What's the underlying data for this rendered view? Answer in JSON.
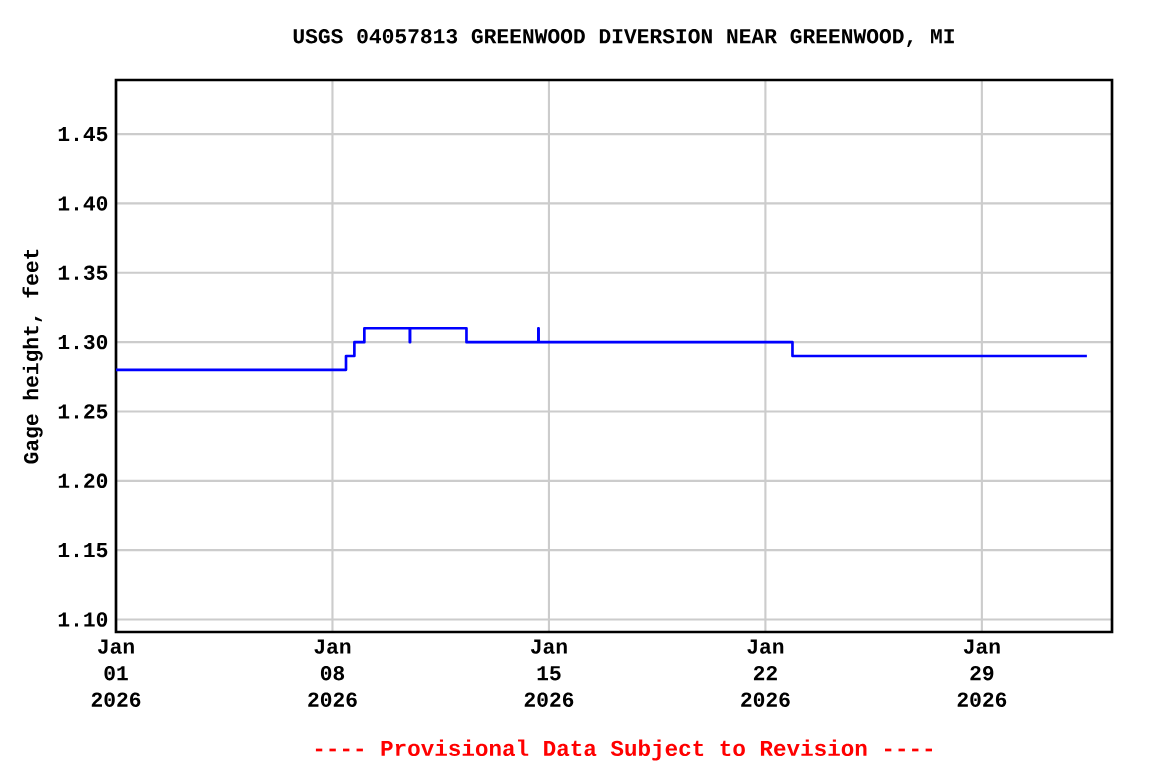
{
  "chart_data": {
    "type": "step",
    "title": "USGS 04057813 GREENWOOD DIVERSION NEAR GREENWOOD, MI",
    "ylabel": "Gage height, feet",
    "annotations": [
      "---- Provisional Data Subject to Revision ----"
    ],
    "x": [
      "2026-01-01T00:00",
      "2026-01-08T10:30",
      "2026-01-08T17:00",
      "2026-01-09T00:45",
      "2026-01-10T12:00",
      "2026-01-10T12:15",
      "2026-01-12T08:00",
      "2026-01-14T15:45",
      "2026-01-14T16:00",
      "2026-01-22T21:00",
      "2026-02-01T09:30"
    ],
    "series": [
      {
        "color": "#0000ff",
        "values": [
          1.28,
          1.29,
          1.3,
          1.31,
          1.3,
          1.31,
          1.3,
          1.31,
          1.3,
          1.29,
          1.29
        ]
      }
    ],
    "xlim": [
      "2026-01-01",
      "2026-02-02T05:00"
    ],
    "xticks": [
      {
        "value": "2026-01-01",
        "label": "Jan 01 2026"
      },
      {
        "value": "2026-01-08",
        "label": "Jan 08 2026"
      },
      {
        "value": "2026-01-15",
        "label": "Jan 15 2026"
      },
      {
        "value": "2026-01-22",
        "label": "Jan 22 2026"
      },
      {
        "value": "2026-01-29",
        "label": "Jan 29 2026"
      }
    ],
    "ylim": [
      1.091,
      1.489
    ],
    "yticks": [
      {
        "value": 1.1,
        "label": "1.10"
      },
      {
        "value": 1.15,
        "label": "1.15"
      },
      {
        "value": 1.2,
        "label": "1.20"
      },
      {
        "value": 1.25,
        "label": "1.25"
      },
      {
        "value": 1.3,
        "label": "1.30"
      },
      {
        "value": 1.35,
        "label": "1.35"
      },
      {
        "value": 1.4,
        "label": "1.40"
      },
      {
        "value": 1.45,
        "label": "1.45"
      }
    ],
    "grid": true,
    "marker": "none",
    "line_style": "solid"
  }
}
